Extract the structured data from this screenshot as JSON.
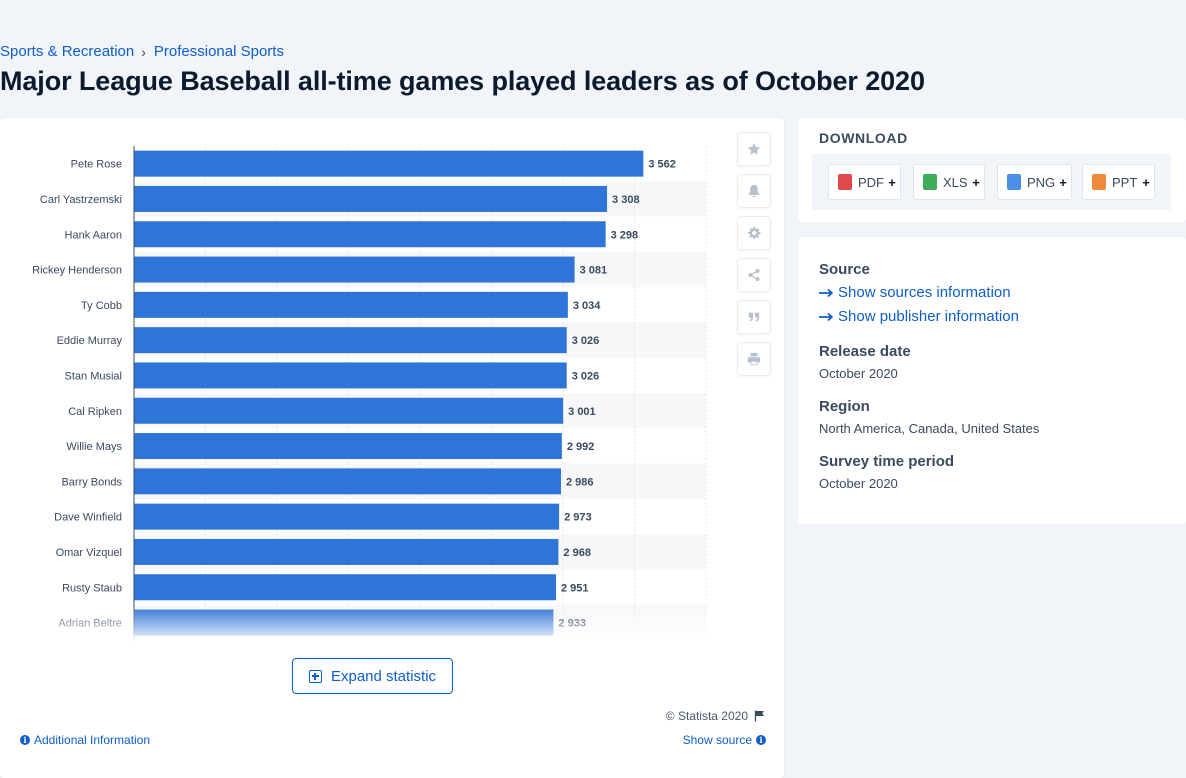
{
  "breadcrumb": [
    {
      "label": "Sports & Recreation"
    },
    {
      "label": "Professional Sports"
    }
  ],
  "breadcrumb_sep": "›",
  "title": "Major League Baseball all-time games played leaders as of October 2020",
  "chart_data": {
    "type": "bar",
    "orientation": "horizontal",
    "categories": [
      "Pete Rose",
      "Carl Yastrzemski",
      "Hank Aaron",
      "Rickey Henderson",
      "Ty Cobb",
      "Eddie Murray",
      "Stan Musial",
      "Cal Ripken",
      "Willie Mays",
      "Barry Bonds",
      "Dave Winfield",
      "Omar Vizquel",
      "Rusty Staub",
      "Adrian Beltre"
    ],
    "values": [
      3562,
      3308,
      3298,
      3081,
      3034,
      3026,
      3026,
      3001,
      2992,
      2986,
      2973,
      2968,
      2951,
      2933
    ],
    "value_labels": [
      "3 562",
      "3 308",
      "3 298",
      "3 081",
      "3 034",
      "3 026",
      "3 026",
      "3 001",
      "2 992",
      "2 986",
      "2 973",
      "2 968",
      "2 951",
      "2 933"
    ],
    "xlim": [
      0,
      4000
    ],
    "grid": true,
    "bar_color": "#2f74d8",
    "title": "",
    "xlabel": "",
    "ylabel": ""
  },
  "expand_label": "Expand statistic",
  "copyright": "© Statista 2020",
  "additional_info": "Additional Information",
  "show_source": "Show source",
  "actions": [
    {
      "icon": "star-icon"
    },
    {
      "icon": "bell-icon"
    },
    {
      "icon": "gear-icon"
    },
    {
      "icon": "share-icon"
    },
    {
      "icon": "quote-icon"
    },
    {
      "icon": "print-icon"
    }
  ],
  "download": {
    "title": "DOWNLOAD",
    "buttons": [
      {
        "label": "PDF",
        "color": "#e2474c"
      },
      {
        "label": "XLS",
        "color": "#3fae5a"
      },
      {
        "label": "PNG",
        "color": "#4a8ee6"
      },
      {
        "label": "PPT",
        "color": "#ef8a3a"
      }
    ],
    "plus": "+"
  },
  "meta": {
    "source_label": "Source",
    "show_sources": "Show sources information",
    "show_publisher": "Show publisher information",
    "release_label": "Release date",
    "release_value": "October 2020",
    "region_label": "Region",
    "region_value": "North America, Canada, United States",
    "survey_label": "Survey time period",
    "survey_value": "October 2020"
  }
}
